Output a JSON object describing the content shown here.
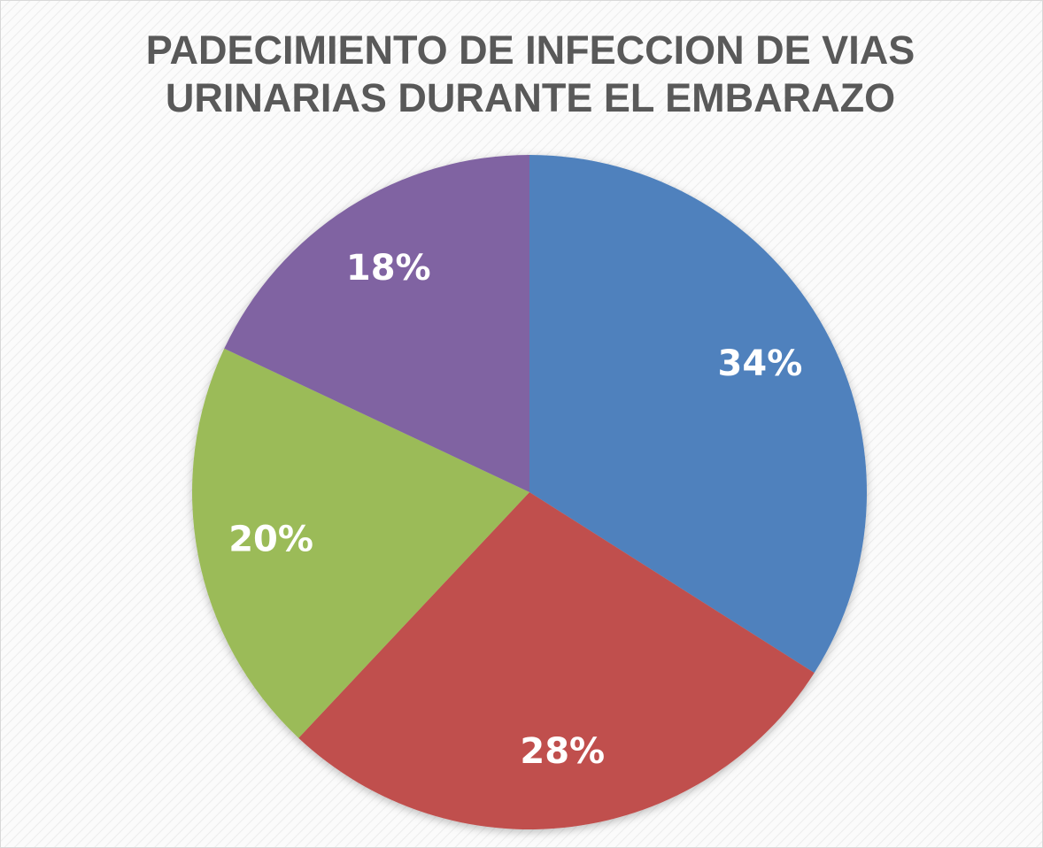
{
  "chart_data": {
    "type": "pie",
    "title": "PADECIMIENTO DE INFECCION DE VIAS URINARIAS DURANTE EL EMBARAZO",
    "values": [
      34,
      28,
      20,
      18
    ],
    "value_labels": [
      "34%",
      "28%",
      "20%",
      "18%"
    ],
    "colors": [
      "#4f81bd",
      "#c0504d",
      "#9bbb59",
      "#8064a2"
    ]
  }
}
